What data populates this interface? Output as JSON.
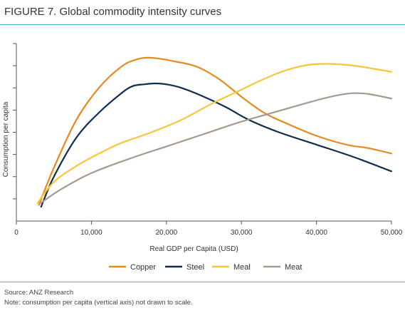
{
  "figure": {
    "title": "FIGURE 7. Global commodity intensity curves",
    "source": "Source: ANZ Research",
    "note": "Note: consumption per capita (vertical axis) not drawn to scale.",
    "rule_color": "#4db8d8"
  },
  "chart_data": {
    "type": "line",
    "xlabel": "Real GDP per Capita (USD)",
    "ylabel": "Consumption per capita",
    "xlim": [
      0,
      50000
    ],
    "ylim": [
      0,
      100
    ],
    "x_ticks": [
      0,
      10000,
      20000,
      30000,
      40000,
      50000
    ],
    "x_tick_labels": [
      "0",
      "10,000",
      "20,000",
      "30,000",
      "40,000",
      "50,000"
    ],
    "y_ticks_unlabeled": 8,
    "grid": false,
    "legend_position": "bottom",
    "series": [
      {
        "name": "Copper",
        "color": "#e8891f",
        "x": [
          3000,
          5000,
          8000,
          11000,
          14000,
          16000,
          17500,
          19000,
          21000,
          24000,
          27000,
          30000,
          33000,
          36000,
          40000,
          44000,
          47000,
          50000
        ],
        "y": [
          9,
          30,
          57,
          75,
          87,
          91,
          92,
          91.5,
          90,
          87,
          80,
          70,
          61,
          55,
          48,
          43,
          41,
          38
        ]
      },
      {
        "name": "Steel",
        "color": "#0d2f4f",
        "x": [
          3300,
          5000,
          8000,
          11000,
          14000,
          15500,
          17000,
          18500,
          20000,
          22000,
          25000,
          28000,
          31000,
          35000,
          40000,
          45000,
          50000
        ],
        "y": [
          8,
          25,
          47,
          61,
          72,
          76,
          77,
          77.5,
          77,
          75,
          70,
          64,
          57,
          50,
          43,
          36,
          28
        ]
      },
      {
        "name": "Meal",
        "color": "#f9c53a",
        "x": [
          2800,
          5000,
          8000,
          11000,
          14000,
          18000,
          22000,
          26000,
          30000,
          33000,
          36000,
          39000,
          42000,
          45000,
          48000,
          50000
        ],
        "y": [
          10,
          22,
          31,
          38,
          44,
          50,
          57,
          66,
          74,
          80,
          85,
          88,
          88.5,
          87.5,
          85.5,
          84
        ]
      },
      {
        "name": "Meat",
        "color": "#a8998d",
        "x": [
          3200,
          6000,
          10000,
          15000,
          20000,
          25000,
          30000,
          35000,
          40000,
          43000,
          45000,
          47000,
          50000
        ],
        "y": [
          10,
          18,
          27,
          35,
          42,
          49,
          56,
          62,
          68,
          71,
          72,
          71.5,
          69
        ]
      }
    ]
  }
}
